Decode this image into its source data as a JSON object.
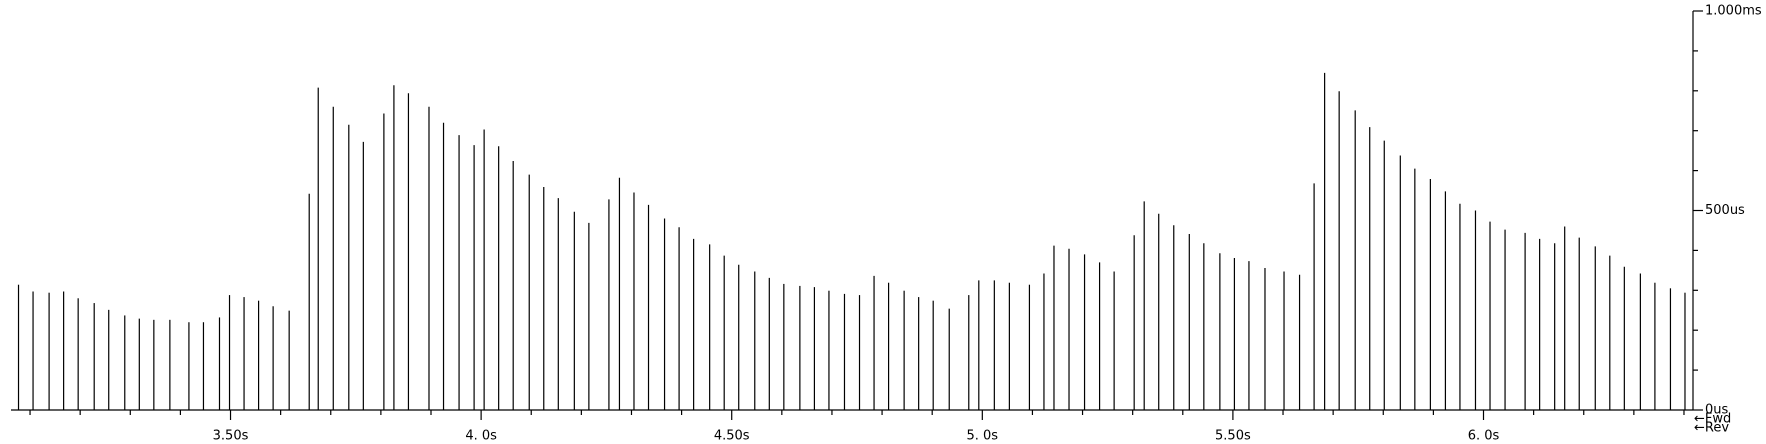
{
  "chart_data": {
    "type": "stem",
    "x": [
      3.077,
      3.106,
      3.138,
      3.167,
      3.196,
      3.228,
      3.257,
      3.289,
      3.318,
      3.347,
      3.379,
      3.417,
      3.446,
      3.478,
      3.498,
      3.527,
      3.556,
      3.585,
      3.617,
      3.657,
      3.675,
      3.705,
      3.736,
      3.765,
      3.806,
      3.826,
      3.855,
      3.896,
      3.925,
      3.956,
      3.986,
      4.006,
      4.035,
      4.064,
      4.096,
      4.125,
      4.154,
      4.186,
      4.215,
      4.255,
      4.276,
      4.305,
      4.334,
      4.366,
      4.395,
      4.424,
      4.456,
      4.485,
      4.514,
      4.546,
      4.575,
      4.604,
      4.636,
      4.665,
      4.694,
      4.725,
      4.755,
      4.784,
      4.813,
      4.844,
      4.873,
      4.902,
      4.934,
      4.973,
      4.993,
      5.024,
      5.054,
      5.094,
      5.123,
      5.143,
      5.173,
      5.204,
      5.234,
      5.263,
      5.303,
      5.323,
      5.352,
      5.382,
      5.413,
      5.442,
      5.474,
      5.503,
      5.532,
      5.564,
      5.602,
      5.633,
      5.662,
      5.683,
      5.712,
      5.744,
      5.773,
      5.802,
      5.834,
      5.863,
      5.894,
      5.924,
      5.953,
      5.984,
      6.013,
      6.043,
      6.083,
      6.112,
      6.142,
      6.162,
      6.191,
      6.223,
      6.252,
      6.281,
      6.313,
      6.342,
      6.373,
      6.402
    ],
    "values": [
      314,
      297,
      294,
      297,
      280,
      268,
      251,
      237,
      229,
      226,
      226,
      220,
      220,
      232,
      288,
      283,
      274,
      260,
      249,
      542,
      808,
      760,
      715,
      672,
      743,
      814,
      794,
      760,
      720,
      689,
      664,
      703,
      661,
      624,
      590,
      559,
      531,
      497,
      469,
      528,
      582,
      545,
      514,
      480,
      458,
      429,
      415,
      387,
      364,
      347,
      331,
      316,
      311,
      308,
      299,
      291,
      288,
      336,
      319,
      299,
      283,
      274,
      254,
      288,
      325,
      325,
      319,
      314,
      342,
      412,
      404,
      390,
      370,
      347,
      438,
      523,
      492,
      463,
      441,
      418,
      393,
      381,
      373,
      356,
      347,
      339,
      568,
      845,
      799,
      751,
      709,
      675,
      638,
      605,
      579,
      548,
      517,
      500,
      472,
      452,
      444,
      429,
      418,
      460,
      432,
      410,
      387,
      359,
      342,
      319,
      305,
      294
    ],
    "color": "#000000",
    "xlim": [
      3.062,
      6.418
    ],
    "ylim": [
      0,
      1000
    ],
    "xticks": [
      {
        "value": 3.5,
        "label": "3.50s"
      },
      {
        "value": 4.0,
        "label": "4. 0s"
      },
      {
        "value": 4.5,
        "label": "4.50s"
      },
      {
        "value": 5.0,
        "label": "5. 0s"
      },
      {
        "value": 5.5,
        "label": "5.50s"
      },
      {
        "value": 6.0,
        "label": "6. 0s"
      }
    ],
    "xminorticks": [
      3.1,
      3.2,
      3.3,
      3.4,
      3.6,
      3.7,
      3.8,
      3.9,
      4.1,
      4.2,
      4.3,
      4.4,
      4.6,
      4.7,
      4.8,
      4.9,
      5.1,
      5.2,
      5.3,
      5.4,
      5.6,
      5.7,
      5.8,
      5.9,
      6.1,
      6.2,
      6.3,
      6.4
    ],
    "yticks": [
      {
        "value": 0,
        "label": "0us"
      },
      {
        "value": 500,
        "label": "500us"
      },
      {
        "value": 1000,
        "label": "1.000ms"
      }
    ],
    "yminorticks": [
      100,
      200,
      300,
      400,
      600,
      700,
      800,
      900
    ],
    "legend": [
      "←Fwd",
      "←Rev"
    ]
  }
}
